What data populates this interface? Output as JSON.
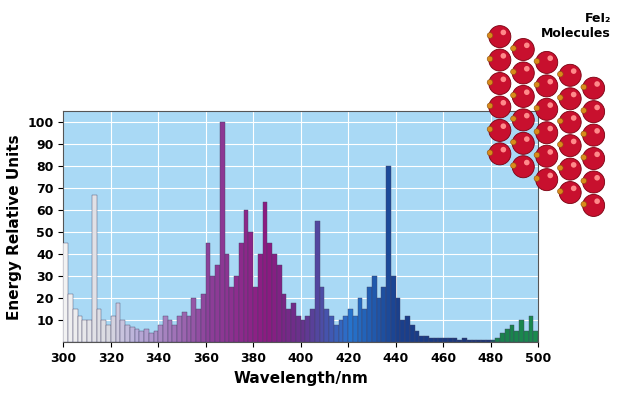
{
  "chart_data": {
    "type": "bar",
    "annotation": "FeI₂\nMolecules",
    "x_label": "Wavelength/nm",
    "y_label": "Energy Relative Units",
    "x": [
      300,
      302,
      304,
      306,
      308,
      310,
      312,
      314,
      316,
      318,
      320,
      322,
      324,
      326,
      328,
      330,
      332,
      334,
      336,
      338,
      340,
      342,
      344,
      346,
      348,
      350,
      352,
      354,
      356,
      358,
      360,
      362,
      364,
      366,
      368,
      370,
      372,
      374,
      376,
      378,
      380,
      382,
      384,
      386,
      388,
      390,
      392,
      394,
      396,
      398,
      400,
      402,
      404,
      406,
      408,
      410,
      412,
      414,
      416,
      418,
      420,
      422,
      424,
      426,
      428,
      430,
      432,
      434,
      436,
      438,
      440,
      442,
      444,
      446,
      448,
      450,
      452,
      454,
      456,
      458,
      460,
      462,
      464,
      466,
      468,
      470,
      472,
      474,
      476,
      478,
      480,
      482,
      484,
      486,
      488,
      490,
      492,
      494,
      496,
      498,
      500
    ],
    "values": [
      45,
      22,
      15,
      12,
      10,
      10,
      67,
      15,
      10,
      8,
      12,
      18,
      10,
      8,
      7,
      6,
      5,
      6,
      4,
      5,
      8,
      12,
      10,
      8,
      12,
      14,
      12,
      20,
      15,
      22,
      45,
      30,
      35,
      100,
      40,
      25,
      30,
      45,
      60,
      50,
      25,
      40,
      64,
      45,
      40,
      35,
      22,
      15,
      18,
      12,
      10,
      12,
      15,
      55,
      25,
      15,
      12,
      8,
      10,
      12,
      15,
      12,
      20,
      15,
      25,
      30,
      20,
      25,
      80,
      30,
      20,
      10,
      12,
      8,
      5,
      3,
      3,
      2,
      2,
      2,
      2,
      2,
      2,
      1,
      2,
      1,
      1,
      1,
      1,
      1,
      1,
      2,
      4,
      6,
      8,
      5,
      10,
      5,
      12,
      5,
      3
    ],
    "xlim": [
      300,
      500
    ],
    "ylim": [
      0,
      105
    ],
    "xticks": [
      300,
      320,
      340,
      360,
      380,
      400,
      420,
      440,
      460,
      480,
      500
    ],
    "yticks": [
      10,
      20,
      30,
      40,
      50,
      60,
      70,
      80,
      90,
      100
    ],
    "grid": true
  }
}
